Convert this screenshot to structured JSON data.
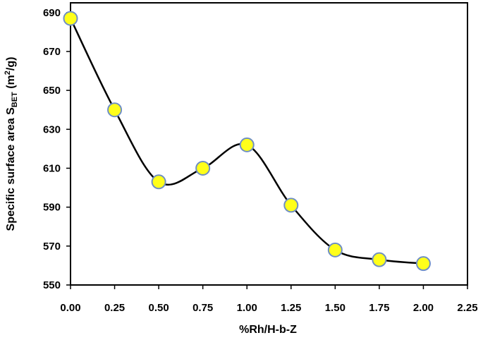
{
  "chart_data": {
    "type": "line",
    "title": "",
    "xlabel": "%Rh/H-b-Z",
    "ylabel": {
      "prefix": "Specific surface area S",
      "subscript": "BET",
      "unit_open": " (m",
      "unit_sup": "2",
      "unit_close": "/g)"
    },
    "xlim": [
      0,
      2.25
    ],
    "ylim": [
      550,
      695
    ],
    "x_ticks": [
      "0.00",
      "0.25",
      "0.50",
      "0.75",
      "1.00",
      "1.25",
      "1.50",
      "1.75",
      "2.00",
      "2.25"
    ],
    "x_tick_values": [
      0,
      0.25,
      0.5,
      0.75,
      1.0,
      1.25,
      1.5,
      1.75,
      2.0,
      2.25
    ],
    "y_ticks": [
      "550",
      "570",
      "590",
      "610",
      "630",
      "650",
      "670",
      "690"
    ],
    "y_tick_values": [
      550,
      570,
      590,
      610,
      630,
      650,
      670,
      690
    ],
    "grid": false,
    "smooth": true,
    "series": [
      {
        "x": [
          0,
          0.25,
          0.5,
          0.75,
          1.0,
          1.25,
          1.5,
          1.75,
          2.0
        ],
        "y": [
          687,
          640,
          603,
          610,
          622,
          591,
          568,
          563,
          561
        ]
      }
    ],
    "colors": {
      "marker_fill": "#ffff1a",
      "marker_stroke": "#6f8fc4",
      "line": "#000000",
      "axis": "#000000"
    }
  }
}
